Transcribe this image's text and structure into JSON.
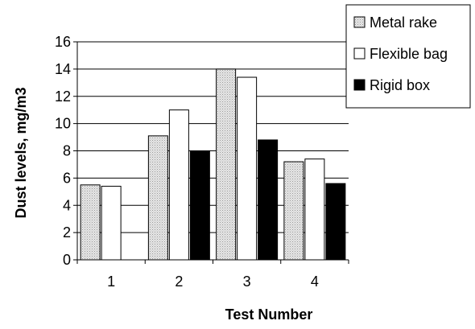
{
  "chart_data": {
    "type": "bar",
    "xlabel": "Test Number",
    "ylabel": "Dust levels, mg/m3",
    "categories": [
      "1",
      "2",
      "3",
      "4"
    ],
    "ylim": [
      0,
      16
    ],
    "yticks": [
      0,
      2,
      4,
      6,
      8,
      10,
      12,
      14,
      16
    ],
    "grid": "horizontal",
    "legend_position": "top-right",
    "series": [
      {
        "name": "Metal rake",
        "values": [
          5.5,
          9.1,
          14.0,
          7.2
        ],
        "fill": "#d8d8d8",
        "pattern": "dotted"
      },
      {
        "name": "Flexible bag",
        "values": [
          5.4,
          11.0,
          13.4,
          7.4
        ],
        "fill": "#ffffff"
      },
      {
        "name": "Rigid box",
        "values": [
          0,
          8.0,
          8.8,
          5.6
        ],
        "fill": "#000000"
      }
    ]
  }
}
